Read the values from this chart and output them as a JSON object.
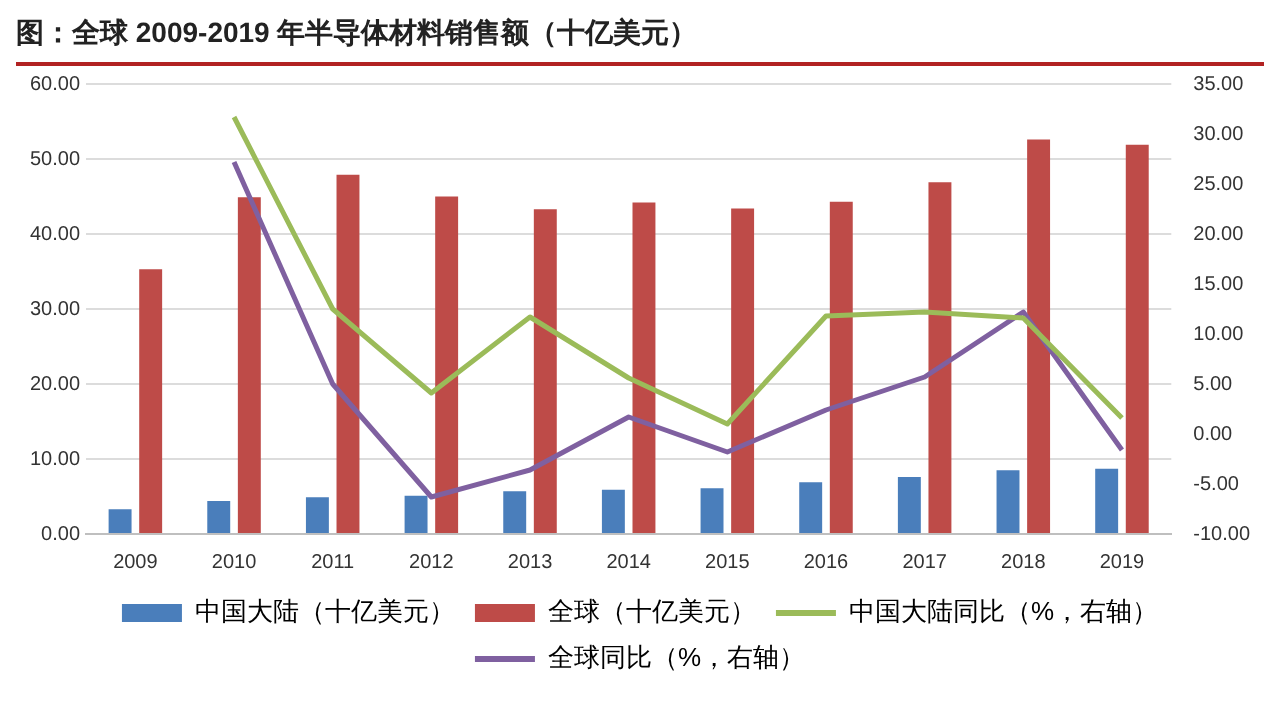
{
  "chart_data": {
    "type": "bar",
    "title": "图：全球 2009-2019 年半导体材料销售额（十亿美元）",
    "categories": [
      "2009",
      "2010",
      "2011",
      "2012",
      "2013",
      "2014",
      "2015",
      "2016",
      "2017",
      "2018",
      "2019"
    ],
    "series": [
      {
        "name": "中国大陆（十亿美元）",
        "color": "#4a7ebb",
        "values": [
          3.3,
          4.4,
          4.9,
          5.1,
          5.7,
          5.9,
          6.1,
          6.9,
          7.6,
          8.5,
          8.7
        ]
      },
      {
        "name": "全球（十亿美元）",
        "color": "#be4b48",
        "values": [
          35.3,
          44.9,
          47.9,
          45.0,
          43.3,
          44.2,
          43.4,
          44.3,
          46.9,
          52.6,
          51.9
        ]
      },
      {
        "name": "中国大陆同比（%，右轴）",
        "type": "line",
        "axis": "y2",
        "color": "#9bbb59",
        "values": [
          null,
          31.7,
          12.5,
          4.1,
          11.7,
          5.6,
          1.0,
          11.8,
          12.2,
          11.6,
          1.6
        ]
      },
      {
        "name": "全球同比（%，右轴）",
        "type": "line",
        "axis": "y2",
        "color": "#7f60a0",
        "values": [
          null,
          27.2,
          5.0,
          -6.3,
          -3.6,
          1.7,
          -1.8,
          2.4,
          5.7,
          12.2,
          -1.6
        ]
      }
    ],
    "ylim": [
      0,
      60
    ],
    "yticks": [
      {
        "value": 0,
        "label": "0.00"
      },
      {
        "value": 10,
        "label": "10.00"
      },
      {
        "value": 20,
        "label": "20.00"
      },
      {
        "value": 30,
        "label": "30.00"
      },
      {
        "value": 40,
        "label": "40.00"
      },
      {
        "value": 50,
        "label": "50.00"
      },
      {
        "value": 60,
        "label": "60.00"
      }
    ],
    "y2lim": [
      -10,
      35
    ],
    "y2ticks": [
      {
        "value": -10,
        "label": "-10.00"
      },
      {
        "value": -5,
        "label": "-5.00"
      },
      {
        "value": 0,
        "label": "0.00"
      },
      {
        "value": 5,
        "label": "5.00"
      },
      {
        "value": 10,
        "label": "10.00"
      },
      {
        "value": 15,
        "label": "15.00"
      },
      {
        "value": 20,
        "label": "20.00"
      },
      {
        "value": 25,
        "label": "25.00"
      },
      {
        "value": 30,
        "label": "30.00"
      },
      {
        "value": 35,
        "label": "35.00"
      }
    ],
    "grid": "y",
    "legend": "bottom",
    "marker": "none",
    "line_style": "solid"
  }
}
